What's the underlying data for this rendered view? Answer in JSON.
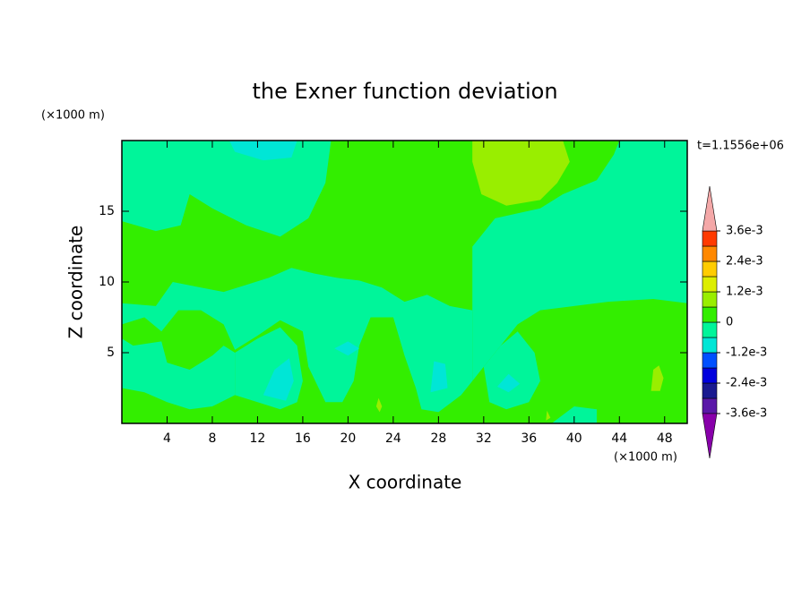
{
  "chart_data": {
    "type": "contour",
    "title": "the Exner function deviation",
    "xlabel": "X coordinate",
    "ylabel": "Z coordinate",
    "xunit": "(×1000 m)",
    "yunit": "(×1000 m)",
    "time_label": "t=1.1556e+06",
    "xlim": [
      0,
      50
    ],
    "ylim": [
      0,
      20
    ],
    "xticks": [
      4,
      8,
      12,
      16,
      20,
      24,
      28,
      32,
      36,
      40,
      44,
      48
    ],
    "yticks": [
      5,
      10,
      15
    ],
    "colorbar": {
      "levels": [
        -0.0036,
        -0.003,
        -0.0024,
        -0.0018,
        -0.0012,
        -0.0006,
        0,
        0.0006,
        0.0012,
        0.0018,
        0.0024,
        0.003,
        0.0036
      ],
      "colors": [
        "#5a18a8",
        "#1a1a90",
        "#0000dd",
        "#0050ff",
        "#00e6d6",
        "#00f59a",
        "#33ee00",
        "#99ee00",
        "#ddee00",
        "#ffcc00",
        "#ff8800",
        "#ff3a00"
      ],
      "under_color": "#8800aa",
      "over_color": "#f4a8a8",
      "ticks": [
        {
          "value": -0.0036,
          "label": "-3.6e-3"
        },
        {
          "value": -0.0024,
          "label": "-2.4e-3"
        },
        {
          "value": -0.0012,
          "label": "-1.2e-3"
        },
        0,
        {
          "value": 0.0012,
          "label": "1.2e-3"
        },
        {
          "value": 0.0024,
          "label": "2.4e-3"
        },
        {
          "value": 0.0036,
          "label": "3.6e-3"
        }
      ]
    }
  }
}
